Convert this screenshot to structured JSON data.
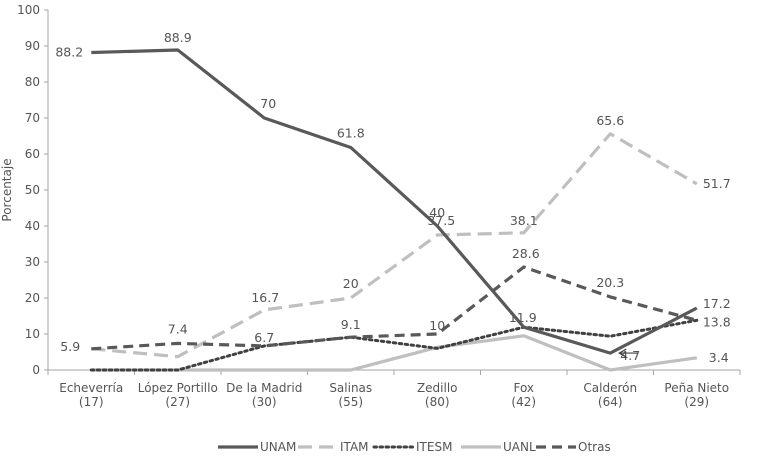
{
  "chart_data": {
    "type": "line",
    "title": "",
    "xlabel": "",
    "ylabel": "Porcentaje",
    "ylim": [
      0,
      100
    ],
    "yticks": [
      0,
      10,
      20,
      30,
      40,
      50,
      60,
      70,
      80,
      90,
      100
    ],
    "grid": false,
    "legend_position": "bottom",
    "categories": [
      [
        "Echeverría",
        "(17)"
      ],
      [
        "López Portillo",
        "(27)"
      ],
      [
        "De la Madrid",
        "(30)"
      ],
      [
        "Salinas",
        "(55)"
      ],
      [
        "Zedillo",
        "(80)"
      ],
      [
        "Fox",
        "(42)"
      ],
      [
        "Calderón",
        "(64)"
      ],
      [
        "Peña Nieto",
        "(29)"
      ]
    ],
    "series": [
      {
        "name": "UNAM",
        "color": "#595959",
        "dash": "solid",
        "width": 3.2,
        "values": [
          88.2,
          88.9,
          70,
          61.8,
          40,
          11.9,
          4.7,
          17.2
        ],
        "labels": [
          "88.2",
          "88.9",
          "70",
          "61.8",
          "40",
          "",
          "4.7",
          "17.2"
        ]
      },
      {
        "name": "ITAM",
        "color": "#bfbfbf",
        "dash": "long",
        "width": 3.2,
        "values": [
          5.9,
          3.7,
          16.7,
          20,
          37.5,
          38.1,
          65.6,
          51.7
        ],
        "labels": [
          "",
          "",
          "16.7",
          "20",
          "37.5",
          "38.1",
          "65.6",
          "51.7"
        ]
      },
      {
        "name": "ITESM",
        "color": "#404040",
        "dash": "dot",
        "width": 3.0,
        "values": [
          0,
          0,
          6.7,
          9.1,
          6.0,
          11.9,
          9.4,
          13.8
        ],
        "labels": [
          "",
          "",
          "6.7",
          "9.1",
          "",
          "11.9",
          "",
          "13.8"
        ]
      },
      {
        "name": "UANL",
        "color": "#bfbfbf",
        "dash": "solid",
        "width": 3.2,
        "values": [
          0,
          0,
          0,
          0,
          6.3,
          9.5,
          0,
          3.4
        ],
        "labels": [
          "",
          "",
          "",
          "",
          "",
          "",
          "",
          "3.4"
        ]
      },
      {
        "name": "Otras",
        "color": "#595959",
        "dash": "dash",
        "width": 3.2,
        "values": [
          5.9,
          7.4,
          6.7,
          9.1,
          10,
          28.6,
          20.3,
          13.8
        ],
        "labels": [
          "5.9",
          "7.4",
          "",
          "",
          "10",
          "28.6",
          "20.3",
          ""
        ]
      }
    ]
  }
}
